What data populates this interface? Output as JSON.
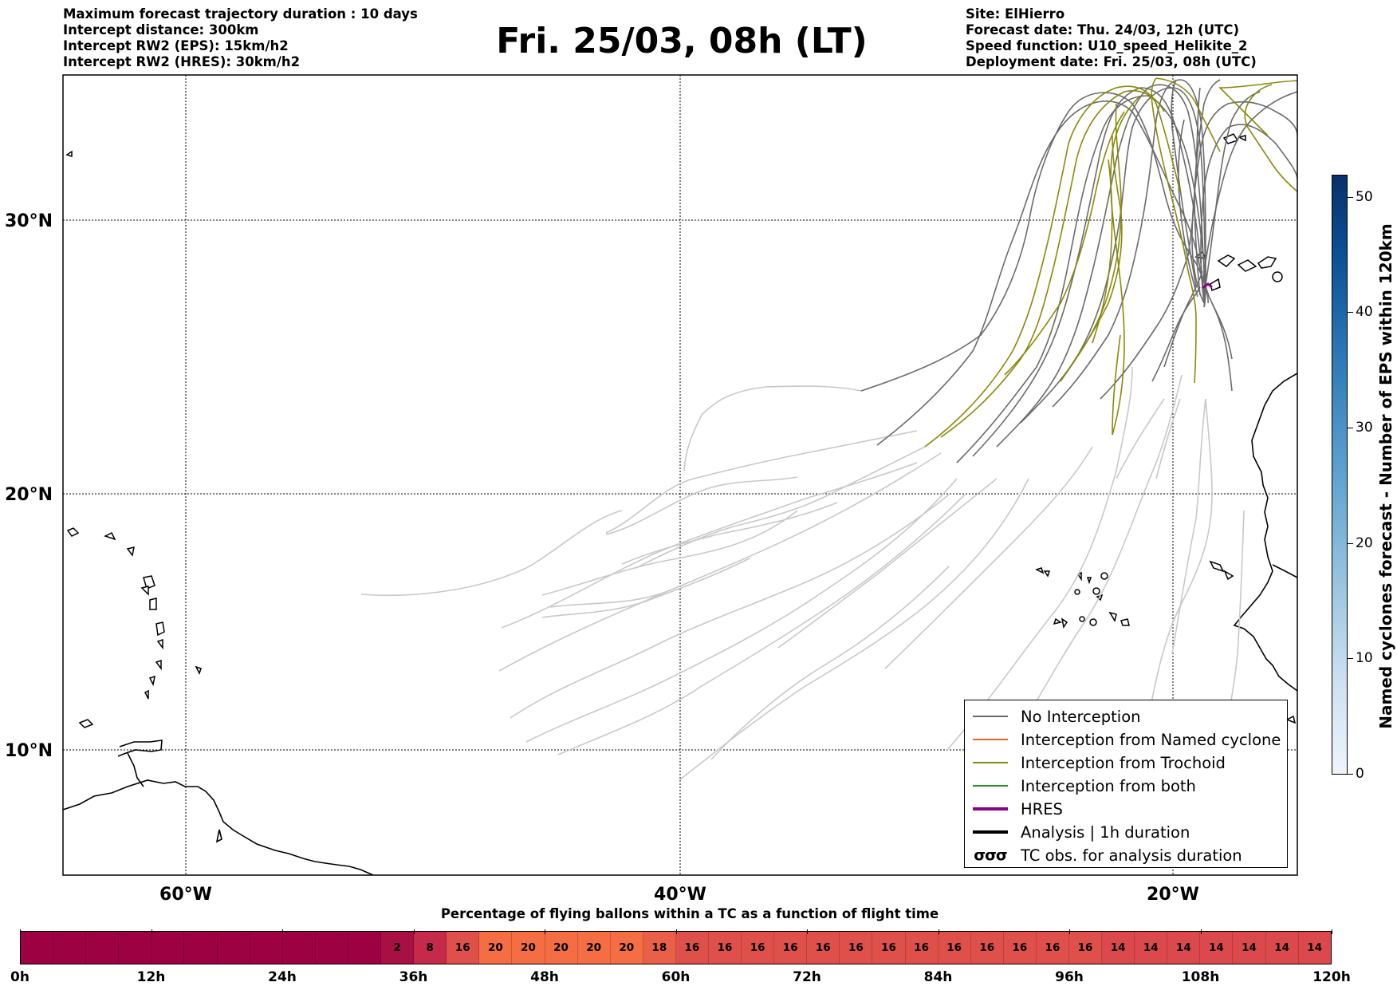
{
  "header": {
    "left_lines": [
      "Maximum forecast trajectory duration : 10 days",
      "Intercept distance: 300km",
      "Intercept RW2 (EPS):  15km/h2",
      "Intercept RW2 (HRES): 30km/h2"
    ],
    "title": "Fri. 25/03, 08h (LT)",
    "right_lines": [
      "Site: ElHierro",
      "Forecast date: Thu. 24/03, 12h (UTC)",
      "Speed function: U10_speed_Helikite_2",
      "Deployment date: Fri. 25/03, 08h (UTC)"
    ]
  },
  "map": {
    "latitude_labels": [
      "30°N",
      "20°N",
      "10°N"
    ],
    "longitude_labels": [
      "60°W",
      "40°W",
      "20°W"
    ],
    "colors": {
      "no_interception": "#6b6b6b",
      "trajectory_faded": "#c8c8c8",
      "named_cyclone": "#f26322",
      "trochoid": "#8a8a0a",
      "both": "#2e8b2e",
      "hres": "#8b008b",
      "analysis": "#000000"
    }
  },
  "legend": {
    "items": [
      {
        "label": "No Interception",
        "color": "#6b6b6b",
        "width": 1.5
      },
      {
        "label": "Interception from Named cyclone",
        "color": "#f26322",
        "width": 1.5
      },
      {
        "label": "Interception from Trochoid",
        "color": "#8a8a0a",
        "width": 1.5
      },
      {
        "label": "Interception from both",
        "color": "#2e8b2e",
        "width": 1.5
      },
      {
        "label": "HRES",
        "color": "#8b008b",
        "width": 4
      },
      {
        "label": "Analysis | 1h duration",
        "color": "#000000",
        "width": 4
      },
      {
        "label": "TC obs. for analysis duration",
        "color": "#000000",
        "glyph": "σσσ"
      }
    ]
  },
  "colorbar_right": {
    "title": "Named cyclones forecast - Number of EPS within 120km",
    "ticks": [
      "0",
      "10",
      "20",
      "30",
      "40",
      "50"
    ],
    "range": [
      0,
      52
    ]
  },
  "colorbar_bottom": {
    "title": "Percentage of flying ballons within a TC as a function of flight time",
    "tick_labels": [
      "0h",
      "12h",
      "24h",
      "36h",
      "48h",
      "60h",
      "72h",
      "84h",
      "96h",
      "108h",
      "120h"
    ],
    "cells": [
      {
        "value": "",
        "color": "#9e0142"
      },
      {
        "value": "",
        "color": "#9e0142"
      },
      {
        "value": "",
        "color": "#9e0142"
      },
      {
        "value": "",
        "color": "#9e0142"
      },
      {
        "value": "",
        "color": "#9e0142"
      },
      {
        "value": "",
        "color": "#9e0142"
      },
      {
        "value": "",
        "color": "#9e0142"
      },
      {
        "value": "",
        "color": "#9e0142"
      },
      {
        "value": "",
        "color": "#9e0142"
      },
      {
        "value": "",
        "color": "#9e0142"
      },
      {
        "value": "",
        "color": "#9e0142"
      },
      {
        "value": "2",
        "color": "#a80f43"
      },
      {
        "value": "8",
        "color": "#c62a4a"
      },
      {
        "value": "16",
        "color": "#e0504a"
      },
      {
        "value": "20",
        "color": "#f46d43"
      },
      {
        "value": "20",
        "color": "#f46d43"
      },
      {
        "value": "20",
        "color": "#f46d43"
      },
      {
        "value": "20",
        "color": "#f46d43"
      },
      {
        "value": "20",
        "color": "#f46d43"
      },
      {
        "value": "18",
        "color": "#ea5f47"
      },
      {
        "value": "16",
        "color": "#e0504a"
      },
      {
        "value": "16",
        "color": "#e0504a"
      },
      {
        "value": "16",
        "color": "#e0504a"
      },
      {
        "value": "16",
        "color": "#e0504a"
      },
      {
        "value": "16",
        "color": "#e0504a"
      },
      {
        "value": "16",
        "color": "#e0504a"
      },
      {
        "value": "16",
        "color": "#e0504a"
      },
      {
        "value": "16",
        "color": "#e0504a"
      },
      {
        "value": "16",
        "color": "#e0504a"
      },
      {
        "value": "16",
        "color": "#e0504a"
      },
      {
        "value": "16",
        "color": "#e0504a"
      },
      {
        "value": "16",
        "color": "#e0504a"
      },
      {
        "value": "16",
        "color": "#e0504a"
      },
      {
        "value": "14",
        "color": "#dc494c"
      },
      {
        "value": "14",
        "color": "#dc494c"
      },
      {
        "value": "14",
        "color": "#dc494c"
      },
      {
        "value": "14",
        "color": "#dc494c"
      },
      {
        "value": "14",
        "color": "#dc494c"
      },
      {
        "value": "14",
        "color": "#dc494c"
      },
      {
        "value": "14",
        "color": "#dc494c"
      }
    ]
  }
}
